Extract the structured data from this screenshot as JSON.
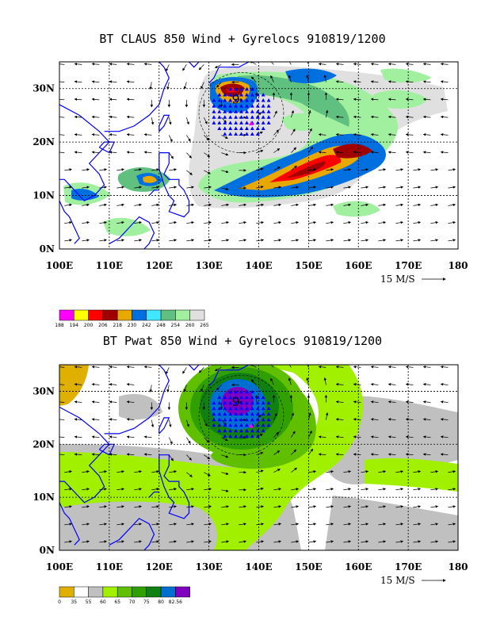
{
  "panel1": {
    "title": "BT CLAUS 850 Wind + Gyrelocs 910819/1200",
    "scale_label": "15 M/S",
    "colorbar": {
      "labels": [
        "188",
        "194",
        "200",
        "206",
        "218",
        "230",
        "242",
        "248",
        "254",
        "260",
        "265"
      ],
      "colors": [
        "#ff00ff",
        "#ffff00",
        "#ff0000",
        "#a00000",
        "#e8a800",
        "#0070e0",
        "#40e8ff",
        "#60c080",
        "#a0f0a0",
        "#e0e0e0"
      ]
    }
  },
  "panel2": {
    "title": "BT Pwat 850 Wind + Gyrelocs 910819/1200",
    "scale_label": "15 M/S",
    "colorbar": {
      "labels": [
        "0",
        "35",
        "55",
        "60",
        "65",
        "70",
        "75",
        "80",
        "82.56"
      ],
      "colors": [
        "#e0b000",
        "#ffffff",
        "#c0c0c0",
        "#a0f000",
        "#60c000",
        "#30a000",
        "#108010",
        "#0070d0",
        "#8000c0"
      ]
    }
  },
  "axes": {
    "x_ticks": [
      "100E",
      "110E",
      "120E",
      "130E",
      "140E",
      "150E",
      "160E",
      "170E",
      "180"
    ],
    "y_ticks": [
      "0N",
      "10N",
      "20N",
      "30N"
    ],
    "lon_range": [
      100,
      180
    ],
    "lat_range": [
      0,
      35
    ]
  },
  "storm_marker": "9",
  "colors": {
    "coast": "#0000ff",
    "gyre_triangles": "#0000ff",
    "center_marker": "#ff00ff"
  }
}
